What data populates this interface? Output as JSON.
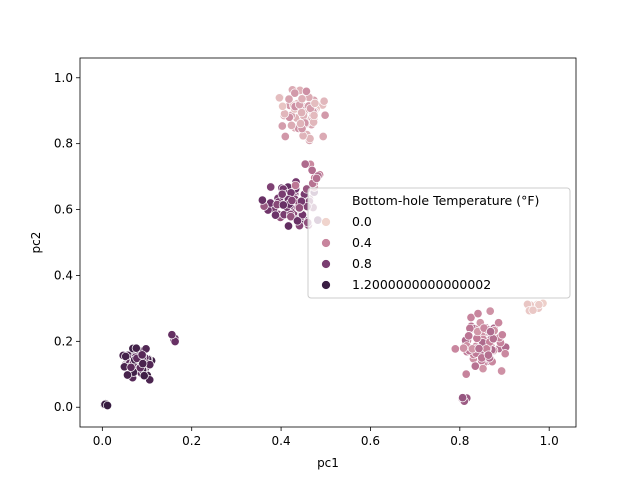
{
  "chart_data": {
    "type": "scatter",
    "title": "",
    "xlabel": "pc1",
    "ylabel": "pc2",
    "xlim": [
      -0.05,
      1.06
    ],
    "ylim": [
      -0.06,
      1.06
    ],
    "xticks": [
      0.0,
      0.2,
      0.4,
      0.6,
      0.8,
      1.0
    ],
    "yticks": [
      0.0,
      0.2,
      0.4,
      0.6,
      0.8,
      1.0
    ],
    "xtick_labels": [
      "0.0",
      "0.2",
      "0.4",
      "0.6",
      "0.8",
      "1.0"
    ],
    "ytick_labels": [
      "0.0",
      "0.2",
      "0.4",
      "0.6",
      "0.8",
      "1.0"
    ],
    "grid": false,
    "hue_range": [
      0.0,
      1.3
    ],
    "legend": {
      "placement": "center-right",
      "title": "Bottom-hole Temperature (°F)",
      "entries": [
        {
          "label": "0.0",
          "hue": 0.0
        },
        {
          "label": "0.4",
          "hue": 0.4
        },
        {
          "label": "0.8",
          "hue": 0.8
        },
        {
          "label": "1.2000000000000002",
          "hue": 1.2
        }
      ]
    },
    "clusters": [
      {
        "name": "top cluster",
        "x": [
          0.38,
          0.52
        ],
        "y": [
          0.78,
          1.0
        ],
        "n": 70,
        "hue": [
          0.05,
          0.35
        ]
      },
      {
        "name": "middle cluster",
        "x": [
          0.35,
          0.5
        ],
        "y": [
          0.53,
          0.7
        ],
        "n": 75,
        "hue": [
          0.65,
          0.95
        ]
      },
      {
        "name": "middle cluster tail",
        "x": [
          0.41,
          0.52
        ],
        "y": [
          0.65,
          0.77
        ],
        "n": 12,
        "hue": [
          0.35,
          0.55
        ]
      },
      {
        "name": "right cluster",
        "x": [
          0.78,
          0.93
        ],
        "y": [
          0.08,
          0.31
        ],
        "n": 85,
        "hue": [
          0.3,
          0.55
        ]
      },
      {
        "name": "right cluster low",
        "x": [
          0.79,
          0.83
        ],
        "y": [
          0.01,
          0.04
        ],
        "n": 5,
        "hue": [
          0.6,
          0.7
        ]
      },
      {
        "name": "far right group",
        "x": [
          0.94,
          1.0
        ],
        "y": [
          0.28,
          0.34
        ],
        "n": 8,
        "hue": [
          0.02,
          0.1
        ]
      },
      {
        "name": "lower left cluster",
        "x": [
          0.03,
          0.12
        ],
        "y": [
          0.07,
          0.21
        ],
        "n": 80,
        "hue": [
          0.95,
          1.2
        ]
      },
      {
        "name": "lower left outliers",
        "x": [
          0.14,
          0.17
        ],
        "y": [
          0.19,
          0.23
        ],
        "n": 4,
        "hue": [
          0.85,
          0.95
        ]
      },
      {
        "name": "origin group",
        "x": [
          0.0,
          0.015
        ],
        "y": [
          0.0,
          0.015
        ],
        "n": 6,
        "hue": [
          1.2,
          1.25
        ]
      }
    ]
  }
}
